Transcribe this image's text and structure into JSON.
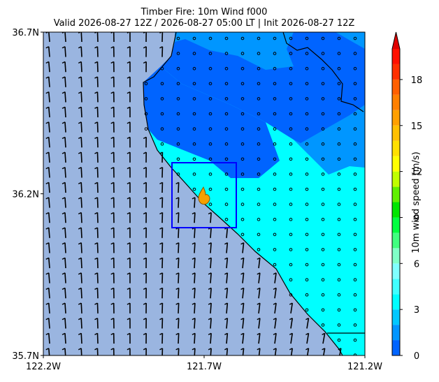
{
  "chart_data": {
    "type": "map",
    "title": "Timber Fire: 10m Wind f000",
    "subtitle": "Valid 2026-08-27 12Z / 2026-08-27 05:00 LT | Init 2026-08-27 12Z",
    "xlim": [
      -122.2,
      -121.2
    ],
    "xticks": [
      {
        "value": -122.2,
        "label": "122.2W"
      },
      {
        "value": -121.7,
        "label": "121.7W"
      },
      {
        "value": -121.2,
        "label": "121.2W"
      }
    ],
    "ylim": [
      35.7,
      36.7
    ],
    "yticks": [
      {
        "value": 35.7,
        "label": "35.7N"
      },
      {
        "value": 36.2,
        "label": "36.2N"
      },
      {
        "value": 36.7,
        "label": "36.7N"
      }
    ],
    "colorbar": {
      "label": "10m wind speed (m/s)",
      "clim": [
        0,
        20
      ],
      "ticks": [
        0,
        3,
        6,
        9,
        12,
        15,
        18
      ],
      "colors": [
        "#0064ff",
        "#0096ff",
        "#00c8ff",
        "#00ffff",
        "#40ffff",
        "#80ffff",
        "#80ffc8",
        "#40ff80",
        "#00ff40",
        "#00e600",
        "#60f000",
        "#c0ff00",
        "#ffff00",
        "#ffe000",
        "#ffc000",
        "#ffa000",
        "#ff8000",
        "#ff6000",
        "#ff3000",
        "#ff1000"
      ],
      "extend_color": "#e00000"
    }
  }
}
